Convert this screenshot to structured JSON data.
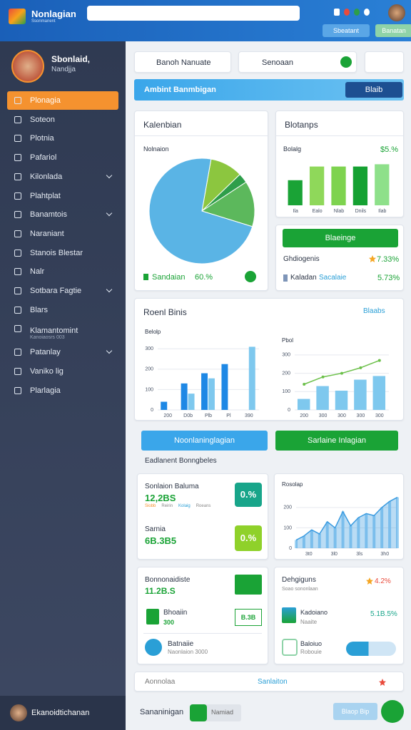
{
  "header": {
    "title": "Nonlagian",
    "subtitle": "Ssonmanent",
    "buttons": [
      "Sbeatant",
      "Banatan"
    ]
  },
  "sidebar": {
    "user_name": "Sbonlaid,",
    "user_role": "Nandjja",
    "active": 0,
    "menu": [
      {
        "label": "Plonagia"
      },
      {
        "label": "Soteon"
      },
      {
        "label": "Plotnia"
      },
      {
        "label": "Pafariol"
      },
      {
        "label": "Kilonlada",
        "expandable": true
      },
      {
        "label": "Plahtplat"
      },
      {
        "label": "Banamtois",
        "expandable": true
      },
      {
        "label": "Naraniant"
      },
      {
        "label": "Stanois Blestar"
      },
      {
        "label": "Nalr"
      },
      {
        "label": "Sotbara Fagtie",
        "expandable": true
      },
      {
        "label": "Blars"
      },
      {
        "label": "Klamantomint",
        "sub": "Kanoiaosrs 003"
      },
      {
        "label": "Patanlay",
        "expandable": true
      },
      {
        "label": "Vaniko lig"
      },
      {
        "label": "Plarlagia"
      }
    ],
    "footer": "Ekanoidtichanan"
  },
  "toolbar": {
    "dropdown": "Banoh Nanuate",
    "search": "Senoaan"
  },
  "banner": {
    "title": "Ambint Banmbigan",
    "button": "Blaib"
  },
  "pie_card": {
    "title": "Kalenbian",
    "label": "Nolnaion",
    "legend": "Sandaian",
    "value_text": "60.%",
    "chart": {
      "type": "pie",
      "values": [
        10,
        3,
        14,
        73
      ],
      "colors": [
        "#8cc63f",
        "#2e9e4a",
        "#5cb85c",
        "#5ab4e5"
      ]
    }
  },
  "bars_card": {
    "title": "Blotanps",
    "label": "Bolalg",
    "value_text": "$5.%",
    "chart": {
      "type": "bar",
      "categories": [
        "Ila",
        "Ealo",
        "Nlab",
        "Dnils",
        "Ilab"
      ],
      "ylim": [
        0,
        100
      ],
      "series": [
        {
          "colors": [
            "#1aa336",
            "#8fd85a",
            "#7ed34f",
            "#15a132",
            "#8ee08a"
          ],
          "values": [
            55,
            85,
            85,
            85,
            90
          ]
        }
      ]
    }
  },
  "stat_card": {
    "button": "Blaeinge",
    "row1": "Ghdiogenis",
    "row1_value": "7.33%",
    "row2": "Kaladan",
    "row2_sub": "Sacalaie",
    "row2_value": "5.73%"
  },
  "reports": {
    "title": "Roenl Binis",
    "link": "Blaabs",
    "left": {
      "type": "bar",
      "label": "Belolp",
      "categories": [
        "200",
        "D0b",
        "Plb",
        "Pl",
        "390"
      ],
      "ylim": [
        0,
        350
      ],
      "yticks": [
        0,
        100,
        200,
        300
      ],
      "series": [
        {
          "color": "#1e88e5",
          "values": [
            40,
            130,
            180,
            225,
            null
          ]
        },
        {
          "color": "#7ec8ee",
          "values": [
            null,
            80,
            155,
            null,
            310
          ]
        }
      ]
    },
    "right": {
      "type": "bar",
      "label": "Pbol",
      "categories": [
        "200",
        "300",
        "300",
        "300",
        "300"
      ],
      "ylim": [
        0,
        350
      ],
      "yticks": [
        0,
        100,
        200,
        300
      ],
      "series": [
        {
          "color": "#7ec8ee",
          "values": [
            60,
            130,
            105,
            165,
            185
          ]
        },
        {
          "type": "line",
          "color": "#6cc04a",
          "values": [
            140,
            180,
            200,
            230,
            270
          ]
        }
      ]
    }
  },
  "actions": [
    "Noonlaninglagian",
    "Sarlaine Inlagian"
  ],
  "section_title": "Eadlanent Bonngbeles",
  "metrics": {
    "a_title": "Sonlaion Baluma",
    "a_value": "12,2BS",
    "a_badge": "0.%",
    "a_sub": [
      "Siobb",
      "Reirin",
      "Kolaig",
      "Roeans"
    ],
    "b_title": "Sarnia",
    "b_value": "6B.3B5",
    "b_badge": "0.%",
    "area": {
      "type": "area",
      "label": "Rosolap",
      "categories": [
        "3t0",
        "3l0",
        "3ls",
        "3h0"
      ],
      "ylim": [
        0,
        280
      ],
      "yticks": [
        0,
        100,
        200
      ],
      "series": [
        {
          "color": "#3a9be0",
          "values": [
            40,
            60,
            90,
            70,
            130,
            100,
            180,
            110,
            150,
            170,
            160,
            200,
            230,
            250
          ]
        }
      ]
    }
  },
  "lower": {
    "a_title": "Bonnonaidiste",
    "a_value": "11.2B.S",
    "b_title": "Bhoaiin",
    "b_value": "300",
    "b_badge": "B.3B",
    "c_title": "Batnaiie",
    "c_sub": "Naonlaion 3000",
    "d_title": "Dehgiguns",
    "d_value": "4.2%",
    "d_sub": "Soao sononlaan",
    "e_title": "Kadoiano",
    "e_sub": "Naaite",
    "e_value": "5.1B.5%",
    "f_title": "Baloiuo",
    "f_sub": "Robouie"
  },
  "strip": {
    "left": "Aonnolaa",
    "right": "Sanlaiton"
  },
  "bottom": {
    "title": "Sananinigan",
    "chip": "Namiad",
    "button": "Blaop Bip"
  }
}
